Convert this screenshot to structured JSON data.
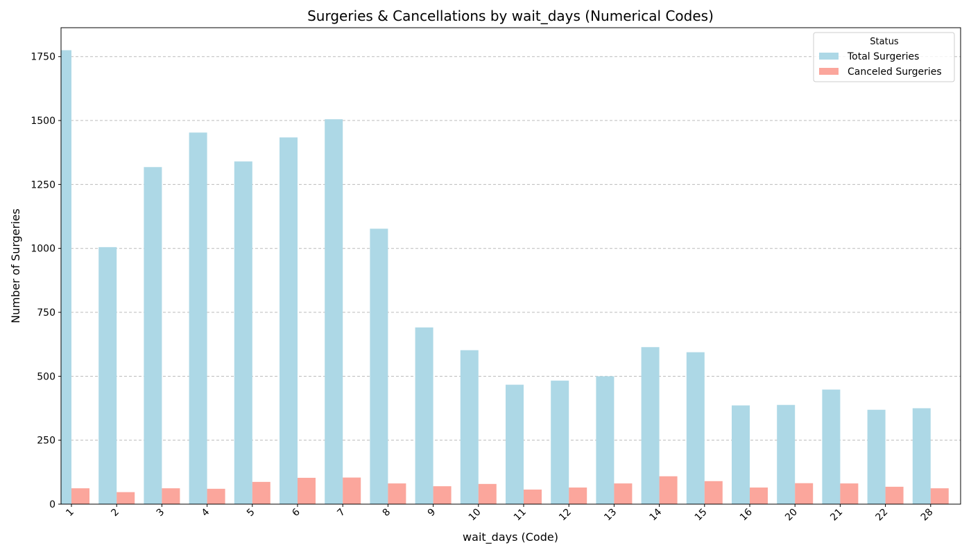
{
  "chart_data": {
    "type": "bar",
    "title": "Surgeries & Cancellations by wait_days (Numerical Codes)",
    "xlabel": "wait_days (Code)",
    "ylabel": "Number of Surgeries",
    "categories": [
      "1",
      "2",
      "3",
      "4",
      "5",
      "6",
      "7",
      "8",
      "9",
      "10",
      "11",
      "12",
      "13",
      "14",
      "15",
      "16",
      "20",
      "21",
      "22",
      "28"
    ],
    "series": [
      {
        "name": "Total Surgeries",
        "color": "#add8e6",
        "values": [
          1775,
          1005,
          1318,
          1453,
          1340,
          1434,
          1505,
          1077,
          691,
          602,
          467,
          483,
          500,
          614,
          594,
          386,
          388,
          448,
          369,
          375
        ]
      },
      {
        "name": "Canceled Surgeries",
        "color": "#fa8072",
        "values": [
          62,
          47,
          62,
          60,
          87,
          103,
          104,
          81,
          70,
          79,
          57,
          65,
          81,
          109,
          90,
          65,
          82,
          81,
          68,
          62
        ]
      }
    ],
    "ylim": [
      0,
      1863
    ],
    "yticks": [
      0,
      250,
      500,
      750,
      1000,
      1250,
      1500,
      1750
    ],
    "grid": "y-dashed",
    "legend": {
      "title": "Status",
      "position": "top-right"
    }
  }
}
